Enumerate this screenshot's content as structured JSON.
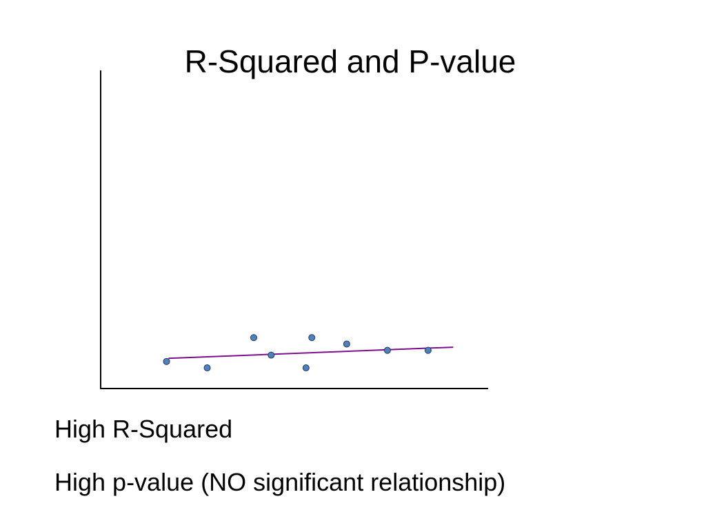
{
  "slide": {
    "title": "R-Squared and P-value",
    "captions": [
      "High R-Squared",
      "High p-value (NO significant relationship)"
    ]
  },
  "chart_data": {
    "type": "scatter",
    "title": "R-Squared and P-value",
    "xlabel": "",
    "ylabel": "",
    "xlim": [
      0,
      10
    ],
    "ylim": [
      0,
      10
    ],
    "grid": false,
    "points": [
      {
        "x": 1.7,
        "y": 0.85
      },
      {
        "x": 2.75,
        "y": 0.65
      },
      {
        "x": 3.95,
        "y": 1.6
      },
      {
        "x": 4.4,
        "y": 1.05
      },
      {
        "x": 5.3,
        "y": 0.65
      },
      {
        "x": 5.45,
        "y": 1.6
      },
      {
        "x": 6.35,
        "y": 1.4
      },
      {
        "x": 7.4,
        "y": 1.2
      },
      {
        "x": 8.45,
        "y": 1.2
      }
    ],
    "trendline": {
      "x": [
        1.75,
        9.1
      ],
      "y": [
        0.95,
        1.3
      ]
    },
    "colors": {
      "marker_fill": "#4f81bd",
      "marker_stroke": "#1f3864",
      "trendline": "#7b0f8c",
      "axis": "#000000"
    }
  }
}
